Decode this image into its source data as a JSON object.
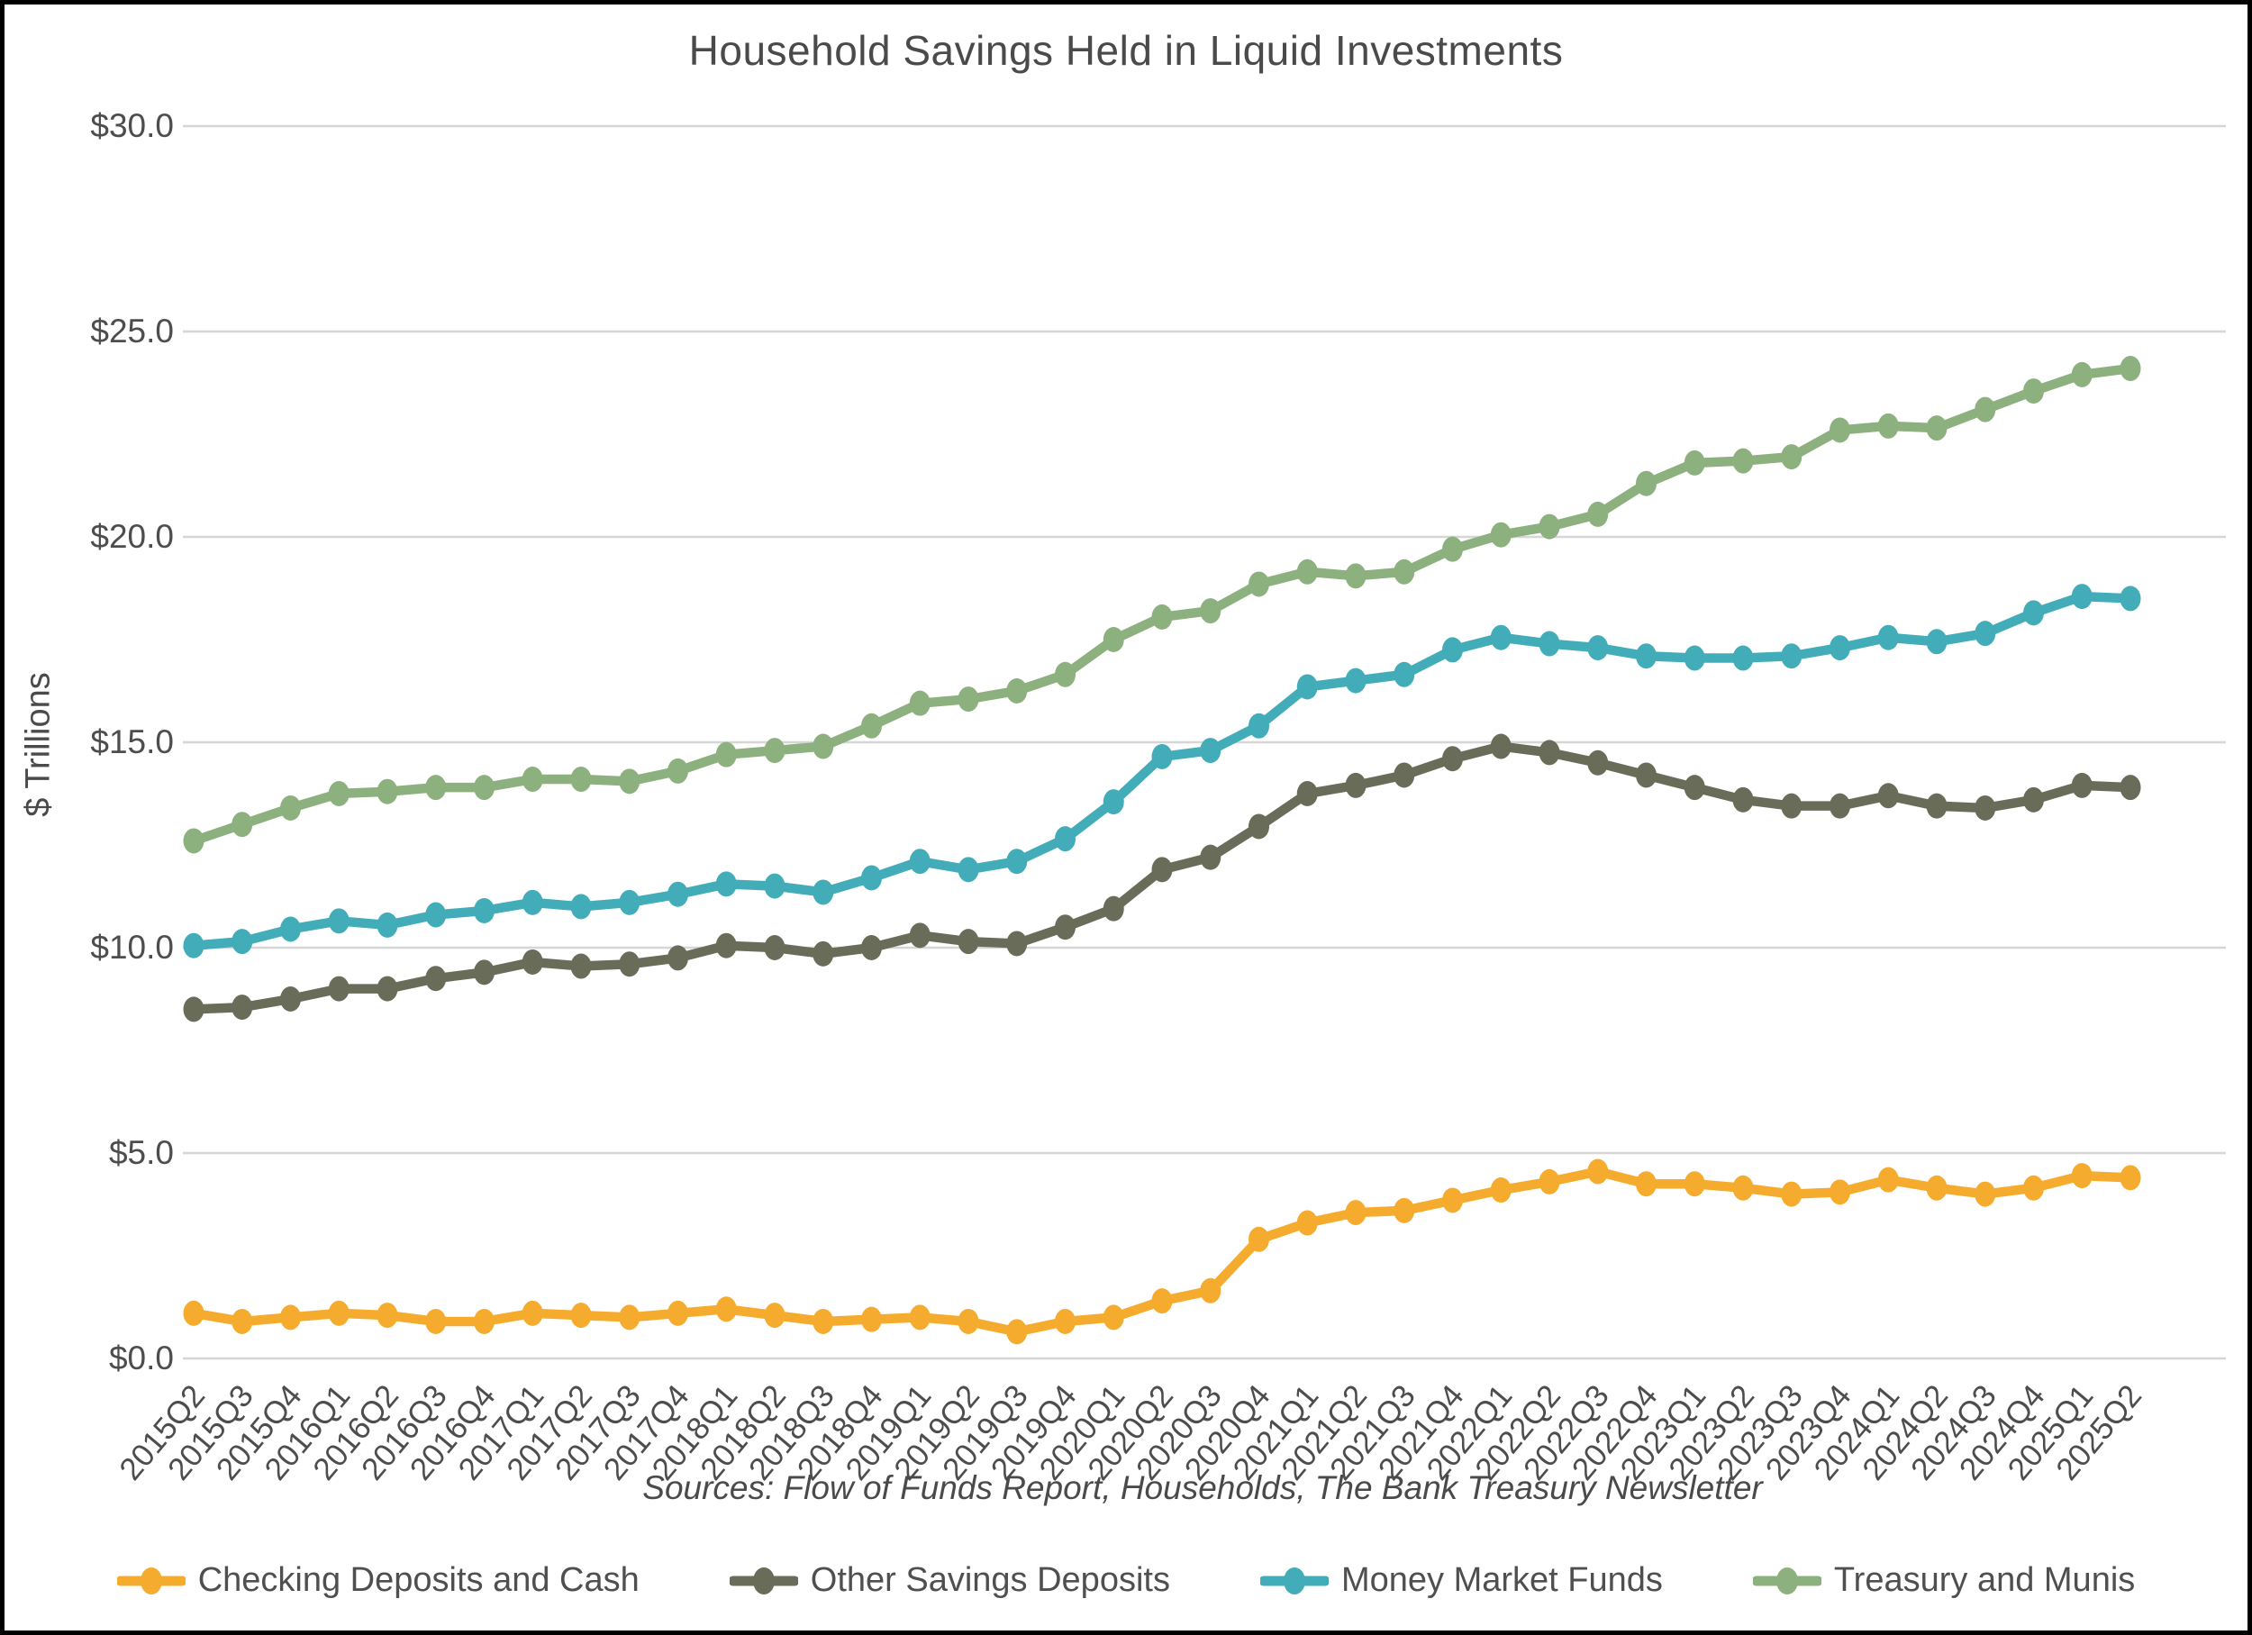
{
  "page": {
    "title": "Household Savings Held in Liquid Investments",
    "source_note": "Sources: Flow of Funds Report, Households, The Bank Treasury Newsletter"
  },
  "chart_data": {
    "type": "line",
    "title": "Household Savings Held in Liquid Investments",
    "xlabel": "",
    "ylabel": "$ Trillions",
    "ylim": [
      0,
      30
    ],
    "grid": "horizontal",
    "legend_position": "bottom",
    "y_tick_labels": [
      "$30.0",
      "$25.0",
      "$20.0",
      "$15.0",
      "$10.0",
      "$5.0",
      "$0.0"
    ],
    "y_tick_values": [
      30,
      25,
      20,
      15,
      10,
      5,
      0
    ],
    "categories": [
      "2015Q2",
      "2015Q3",
      "2015Q4",
      "2016Q1",
      "2016Q2",
      "2016Q3",
      "2016Q4",
      "2017Q1",
      "2017Q2",
      "2017Q3",
      "2017Q4",
      "2018Q1",
      "2018Q2",
      "2018Q3",
      "2018Q4",
      "2019Q1",
      "2019Q2",
      "2019Q3",
      "2019Q4",
      "2020Q1",
      "2020Q2",
      "2020Q3",
      "2020Q4",
      "2021Q1",
      "2021Q2",
      "2021Q3",
      "2021Q4",
      "2022Q1",
      "2022Q2",
      "2022Q3",
      "2022Q4",
      "2023Q1",
      "2023Q2",
      "2023Q3",
      "2023Q4",
      "2024Q1",
      "2024Q2",
      "2024Q3",
      "2024Q4",
      "2025Q1",
      "2025Q2"
    ],
    "series": [
      {
        "name": "Checking Deposits and Cash",
        "color": "#F5AB2D",
        "values": [
          1.1,
          0.9,
          1.0,
          1.1,
          1.05,
          0.9,
          0.9,
          1.1,
          1.05,
          1.0,
          1.1,
          1.2,
          1.05,
          0.9,
          0.95,
          1.0,
          0.9,
          0.65,
          0.9,
          1.0,
          1.4,
          1.65,
          2.9,
          3.3,
          3.55,
          3.6,
          3.85,
          4.1,
          4.3,
          4.55,
          4.25,
          4.25,
          4.15,
          4.0,
          4.05,
          4.35,
          4.15,
          4.0,
          4.15,
          4.45,
          4.4
        ]
      },
      {
        "name": "Other Savings Deposits",
        "color": "#696C58",
        "values": [
          8.5,
          8.55,
          8.75,
          9.0,
          9.0,
          9.25,
          9.4,
          9.65,
          9.55,
          9.6,
          9.75,
          10.05,
          10.0,
          9.85,
          10.0,
          10.3,
          10.15,
          10.1,
          10.5,
          10.95,
          11.9,
          12.2,
          12.95,
          13.75,
          13.95,
          14.2,
          14.6,
          14.9,
          14.75,
          14.5,
          14.2,
          13.9,
          13.6,
          13.45,
          13.45,
          13.7,
          13.45,
          13.4,
          13.6,
          13.95,
          13.9
        ]
      },
      {
        "name": "Money Market Funds",
        "color": "#42ADB9",
        "values": [
          10.05,
          10.15,
          10.45,
          10.65,
          10.55,
          10.8,
          10.9,
          11.1,
          11.0,
          11.1,
          11.3,
          11.55,
          11.5,
          11.35,
          11.7,
          12.1,
          11.9,
          12.1,
          12.65,
          13.55,
          14.65,
          14.8,
          15.4,
          16.35,
          16.5,
          16.65,
          17.25,
          17.55,
          17.4,
          17.3,
          17.1,
          17.05,
          17.05,
          17.1,
          17.3,
          17.55,
          17.45,
          17.65,
          18.15,
          18.55,
          18.5
        ]
      },
      {
        "name": "Treasury and Munis",
        "color": "#8DB07F",
        "values": [
          12.6,
          13.0,
          13.4,
          13.75,
          13.8,
          13.9,
          13.9,
          14.1,
          14.1,
          14.05,
          14.3,
          14.7,
          14.8,
          14.9,
          15.4,
          15.95,
          16.05,
          16.25,
          16.65,
          17.5,
          18.05,
          18.2,
          18.85,
          19.15,
          19.05,
          19.15,
          19.7,
          20.05,
          20.25,
          20.55,
          21.3,
          21.8,
          21.85,
          21.95,
          22.6,
          22.7,
          22.65,
          23.1,
          23.55,
          23.95,
          24.1
        ]
      }
    ]
  }
}
